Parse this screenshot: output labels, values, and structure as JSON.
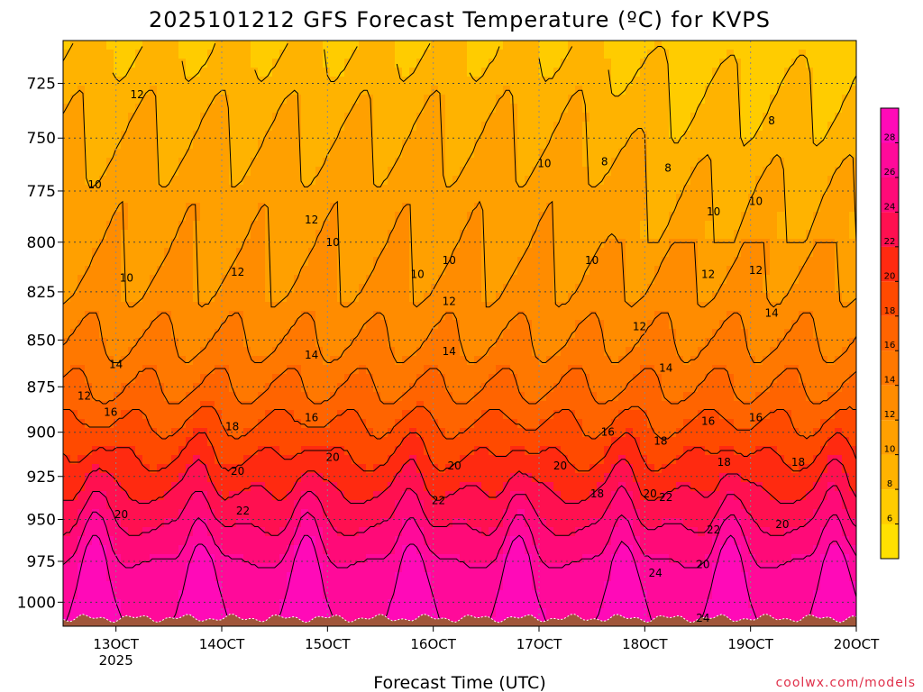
{
  "chart_data": {
    "type": "heatmap",
    "title": "2025101212 GFS Forecast Temperature (ºC) for KVPS",
    "xlabel": "Forecast Time (UTC)",
    "ylabel": "",
    "xlim": [
      12.5,
      20.0
    ],
    "ylim": [
      1015,
      706
    ],
    "y_scale": "log-pressure",
    "y_ticks": [
      725,
      750,
      775,
      800,
      825,
      850,
      875,
      900,
      925,
      950,
      975,
      1000
    ],
    "x_ticks": [
      {
        "day": 13,
        "label": "13OCT",
        "sub": "2025"
      },
      {
        "day": 14,
        "label": "14OCT",
        "sub": ""
      },
      {
        "day": 15,
        "label": "15OCT",
        "sub": ""
      },
      {
        "day": 16,
        "label": "16OCT",
        "sub": ""
      },
      {
        "day": 17,
        "label": "17OCT",
        "sub": ""
      },
      {
        "day": 18,
        "label": "18OCT",
        "sub": ""
      },
      {
        "day": 19,
        "label": "19OCT",
        "sub": ""
      },
      {
        "day": 20,
        "label": "20OCT",
        "sub": ""
      }
    ],
    "grid": true,
    "colorbar": {
      "levels": [
        4,
        6,
        8,
        10,
        12,
        14,
        16,
        18,
        20,
        22,
        24,
        26,
        28,
        30
      ],
      "tick_labels": [
        6,
        8,
        10,
        12,
        14,
        16,
        18,
        20,
        22,
        24,
        26,
        28
      ],
      "colors": [
        "#ffe000",
        "#ffcc00",
        "#ffb300",
        "#ffa000",
        "#ff8c00",
        "#ff7800",
        "#ff6400",
        "#ff4a00",
        "#ff2a10",
        "#ff1050",
        "#ff0a78",
        "#ff0a9a",
        "#ff0ab8"
      ]
    },
    "isotherm_profile": {
      "pressure": [
        706,
        725,
        750,
        775,
        800,
        825,
        850,
        875,
        900,
        925,
        950,
        975,
        1000,
        1015
      ],
      "temperature": [
        8,
        9,
        10,
        11,
        11.5,
        12.5,
        14,
        16,
        18.5,
        21,
        23.5,
        26,
        27.5,
        28
      ]
    },
    "contour_labels": [
      {
        "day": 13.2,
        "p": 730,
        "value": "12"
      },
      {
        "day": 12.8,
        "p": 772,
        "value": "10"
      },
      {
        "day": 13.1,
        "p": 818,
        "value": "10"
      },
      {
        "day": 12.7,
        "p": 880,
        "value": "12"
      },
      {
        "day": 13.0,
        "p": 863,
        "value": "14"
      },
      {
        "day": 12.95,
        "p": 889,
        "value": "16"
      },
      {
        "day": 13.05,
        "p": 947,
        "value": "20"
      },
      {
        "day": 14.15,
        "p": 815,
        "value": "12"
      },
      {
        "day": 14.1,
        "p": 897,
        "value": "18"
      },
      {
        "day": 14.15,
        "p": 922,
        "value": "20"
      },
      {
        "day": 14.2,
        "p": 945,
        "value": "22"
      },
      {
        "day": 14.85,
        "p": 858,
        "value": "14"
      },
      {
        "day": 14.85,
        "p": 892,
        "value": "16"
      },
      {
        "day": 14.85,
        "p": 789,
        "value": "12"
      },
      {
        "day": 15.05,
        "p": 800,
        "value": "10"
      },
      {
        "day": 15.05,
        "p": 914,
        "value": "20"
      },
      {
        "day": 16.15,
        "p": 809,
        "value": "10"
      },
      {
        "day": 16.15,
        "p": 830,
        "value": "12"
      },
      {
        "day": 16.15,
        "p": 856,
        "value": "14"
      },
      {
        "day": 16.2,
        "p": 919,
        "value": "20"
      },
      {
        "day": 16.05,
        "p": 939,
        "value": "22"
      },
      {
        "day": 15.85,
        "p": 816,
        "value": "10"
      },
      {
        "day": 17.05,
        "p": 762,
        "value": "10"
      },
      {
        "day": 17.2,
        "p": 919,
        "value": "20"
      },
      {
        "day": 17.5,
        "p": 809,
        "value": "10"
      },
      {
        "day": 17.62,
        "p": 761,
        "value": "8"
      },
      {
        "day": 17.65,
        "p": 900,
        "value": "16"
      },
      {
        "day": 17.55,
        "p": 935,
        "value": "18"
      },
      {
        "day": 17.95,
        "p": 843,
        "value": "12"
      },
      {
        "day": 18.05,
        "p": 935,
        "value": "20"
      },
      {
        "day": 18.2,
        "p": 937,
        "value": "22"
      },
      {
        "day": 18.1,
        "p": 982,
        "value": "24"
      },
      {
        "day": 18.15,
        "p": 905,
        "value": "18"
      },
      {
        "day": 18.2,
        "p": 865,
        "value": "14"
      },
      {
        "day": 18.22,
        "p": 764,
        "value": "8"
      },
      {
        "day": 18.65,
        "p": 785,
        "value": "10"
      },
      {
        "day": 18.6,
        "p": 816,
        "value": "12"
      },
      {
        "day": 18.6,
        "p": 894,
        "value": "16"
      },
      {
        "day": 18.75,
        "p": 917,
        "value": "18"
      },
      {
        "day": 18.65,
        "p": 956,
        "value": "22"
      },
      {
        "day": 18.55,
        "p": 977,
        "value": "20"
      },
      {
        "day": 18.55,
        "p": 1010,
        "value": "24"
      },
      {
        "day": 19.2,
        "p": 742,
        "value": "8"
      },
      {
        "day": 19.05,
        "p": 780,
        "value": "10"
      },
      {
        "day": 19.05,
        "p": 814,
        "value": "12"
      },
      {
        "day": 19.2,
        "p": 836,
        "value": "14"
      },
      {
        "day": 19.05,
        "p": 892,
        "value": "16"
      },
      {
        "day": 19.45,
        "p": 917,
        "value": "18"
      },
      {
        "day": 19.3,
        "p": 953,
        "value": "20"
      }
    ],
    "terrain_color": "#a0563a"
  },
  "credit": "coolwx.com/models"
}
